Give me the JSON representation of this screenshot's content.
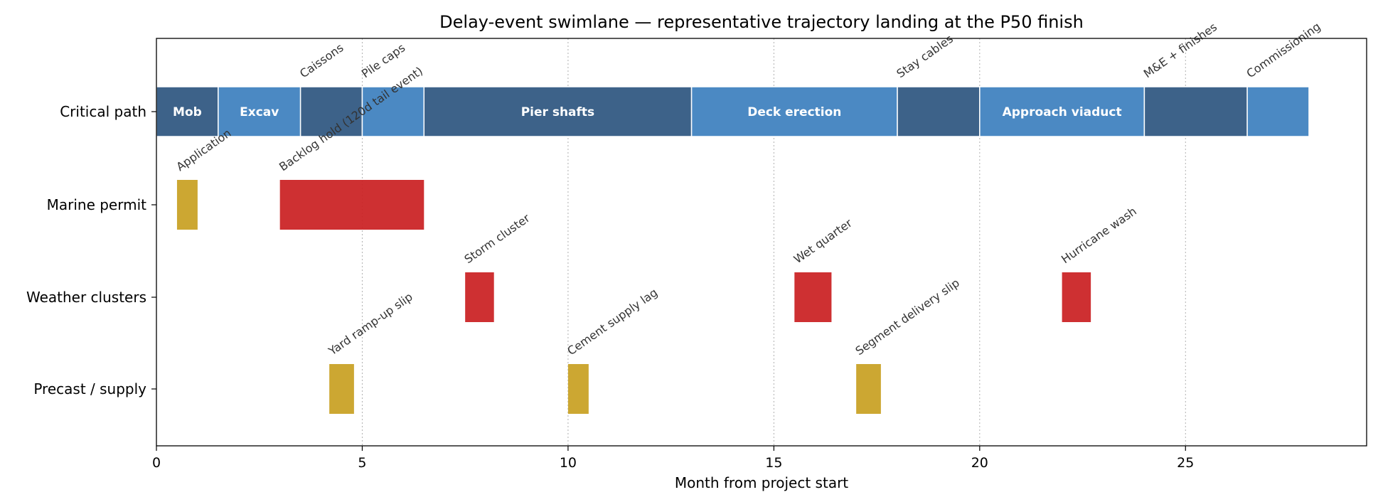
{
  "chart_data": {
    "type": "swimlane",
    "title": "Delay-event swimlane — representative trajectory landing at the P50 finish",
    "xlabel": "Month from project start",
    "ylabel": "",
    "xlim": [
      0,
      29.4
    ],
    "xticks": [
      0,
      5,
      10,
      15,
      20,
      25
    ],
    "grid": "vertical dotted at major ticks",
    "lanes": [
      "Critical path",
      "Marine permit",
      "Weather clusters",
      "Precast / supply"
    ],
    "critical_path": [
      {
        "label": "Mob",
        "show_inside": true,
        "start": 0.0,
        "end": 1.5
      },
      {
        "label": "Excav",
        "show_inside": true,
        "start": 1.5,
        "end": 3.5
      },
      {
        "label": "Caissons",
        "show_inside": false,
        "start": 3.5,
        "end": 5.0
      },
      {
        "label": "Pile caps",
        "show_inside": false,
        "start": 5.0,
        "end": 6.5
      },
      {
        "label": "Pier shafts",
        "show_inside": true,
        "start": 6.5,
        "end": 13.0
      },
      {
        "label": "Deck erection",
        "show_inside": true,
        "start": 13.0,
        "end": 18.0
      },
      {
        "label": "Stay cables",
        "show_inside": false,
        "start": 18.0,
        "end": 20.0
      },
      {
        "label": "Approach viaduct",
        "show_inside": true,
        "start": 20.0,
        "end": 24.0
      },
      {
        "label": "M&E + finishes",
        "show_inside": false,
        "start": 24.0,
        "end": 26.5
      },
      {
        "label": "Commissioning",
        "show_inside": false,
        "start": 26.5,
        "end": 28.0
      }
    ],
    "events": [
      {
        "lane": 1,
        "label": "Application",
        "start": 0.5,
        "end": 1.0,
        "kind": "minor"
      },
      {
        "lane": 1,
        "label": "Backlog hold (120d tail event)",
        "start": 3.0,
        "end": 6.5,
        "kind": "major"
      },
      {
        "lane": 2,
        "label": "Storm cluster",
        "start": 7.5,
        "end": 8.2,
        "kind": "major"
      },
      {
        "lane": 2,
        "label": "Wet quarter",
        "start": 15.5,
        "end": 16.4,
        "kind": "major"
      },
      {
        "lane": 2,
        "label": "Hurricane wash",
        "start": 22.0,
        "end": 22.7,
        "kind": "major"
      },
      {
        "lane": 3,
        "label": "Yard ramp-up slip",
        "start": 4.2,
        "end": 4.8,
        "kind": "minor"
      },
      {
        "lane": 3,
        "label": "Cement supply lag",
        "start": 10.0,
        "end": 10.5,
        "kind": "minor"
      },
      {
        "lane": 3,
        "label": "Segment delivery slip",
        "start": 17.0,
        "end": 17.6,
        "kind": "minor"
      }
    ],
    "colors": {
      "cp_dark": "#3d6289",
      "cp_light": "#4b89c3",
      "minor": "#c9a227",
      "major": "#cb2527",
      "grid": "#b0b0b0"
    }
  }
}
